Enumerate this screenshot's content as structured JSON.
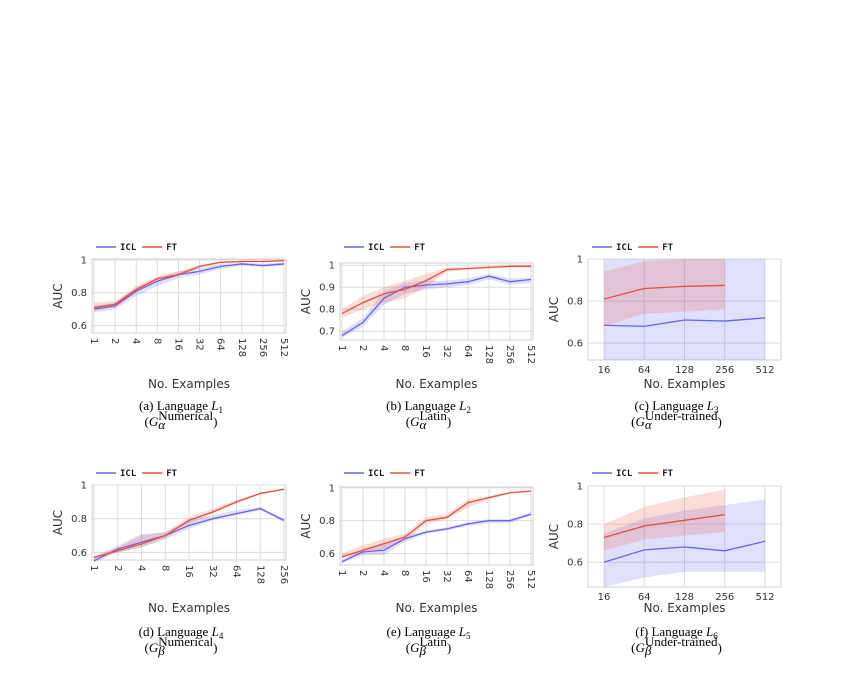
{
  "chart_data": [
    {
      "type": "line",
      "xlabel": "No. Examples",
      "ylabel": "AUC",
      "categories": [
        "1",
        "2",
        "4",
        "8",
        "16",
        "32",
        "64",
        "128",
        "256",
        "512"
      ],
      "ylim": [
        0.555,
        1.005
      ],
      "yticks": [
        0.6,
        0.8,
        1
      ],
      "grid": true,
      "series": [
        {
          "name": "ICL",
          "color": "#6464f0",
          "values": [
            0.7,
            0.72,
            0.81,
            0.87,
            0.91,
            0.93,
            0.96,
            0.975,
            0.965,
            0.975
          ],
          "lower": [
            0.68,
            0.7,
            0.78,
            0.84,
            0.89,
            0.91,
            0.945,
            0.965,
            0.955,
            0.965
          ],
          "upper": [
            0.72,
            0.74,
            0.83,
            0.89,
            0.93,
            0.95,
            0.975,
            0.985,
            0.975,
            0.985
          ]
        },
        {
          "name": "FT",
          "color": "#e6503c",
          "values": [
            0.71,
            0.73,
            0.82,
            0.885,
            0.91,
            0.96,
            0.985,
            0.99,
            0.99,
            0.995
          ],
          "lower": [
            0.69,
            0.71,
            0.8,
            0.87,
            0.9,
            0.95,
            0.98,
            0.985,
            0.985,
            0.99
          ],
          "upper": [
            0.74,
            0.75,
            0.84,
            0.9,
            0.93,
            0.97,
            0.99,
            0.995,
            0.995,
            1.0
          ]
        }
      ],
      "caption_prefix": "(a) Language ",
      "caption_var": "L",
      "caption_sub": "1",
      "group_open": "(",
      "group_var": "G",
      "group_sub": "α",
      "group_sup": "Numerical",
      "group_close": ")"
    },
    {
      "type": "line",
      "xlabel": "No. Examples",
      "ylabel": "AUC",
      "categories": [
        "1",
        "2",
        "4",
        "8",
        "16",
        "32",
        "64",
        "128",
        "256",
        "512"
      ],
      "ylim": [
        0.66,
        1.01
      ],
      "yticks": [
        0.7,
        0.8,
        0.9,
        1
      ],
      "grid": true,
      "series": [
        {
          "name": "ICL",
          "color": "#6464f0",
          "values": [
            0.68,
            0.74,
            0.85,
            0.9,
            0.91,
            0.915,
            0.925,
            0.95,
            0.925,
            0.935
          ],
          "lower": [
            0.67,
            0.72,
            0.82,
            0.87,
            0.89,
            0.9,
            0.91,
            0.935,
            0.91,
            0.92
          ],
          "upper": [
            0.7,
            0.76,
            0.88,
            0.92,
            0.93,
            0.93,
            0.94,
            0.96,
            0.94,
            0.945
          ]
        },
        {
          "name": "FT",
          "color": "#e6503c",
          "values": [
            0.78,
            0.83,
            0.87,
            0.89,
            0.93,
            0.98,
            0.985,
            0.99,
            0.995,
            0.995
          ],
          "lower": [
            0.76,
            0.8,
            0.83,
            0.85,
            0.9,
            0.97,
            0.98,
            0.985,
            0.99,
            0.99
          ],
          "upper": [
            0.8,
            0.86,
            0.9,
            0.93,
            0.96,
            0.99,
            0.99,
            0.995,
            1.0,
            1.0
          ]
        }
      ],
      "caption_prefix": "(b) Language ",
      "caption_var": "L",
      "caption_sub": "2",
      "group_open": "(",
      "group_var": "G",
      "group_sub": "α",
      "group_sup": "Latin",
      "group_close": ")"
    },
    {
      "type": "line",
      "xlabel": "No. Examples",
      "ylabel": "AUC",
      "categories": [
        "16",
        "64",
        "128",
        "256",
        "512"
      ],
      "ylim": [
        0.52,
        1.0
      ],
      "yticks": [
        0.6,
        0.8,
        1
      ],
      "grid": true,
      "series": [
        {
          "name": "ICL",
          "color": "#6464f0",
          "values": [
            0.685,
            0.68,
            0.71,
            0.705,
            0.72
          ],
          "lower": [
            0.52,
            0.52,
            0.52,
            0.52,
            0.52
          ],
          "upper": [
            1.0,
            1.0,
            1.0,
            1.0,
            1.0
          ]
        },
        {
          "name": "FT",
          "color": "#e6503c",
          "values": [
            0.81,
            0.86,
            0.87,
            0.875,
            null
          ],
          "lower": [
            0.68,
            0.74,
            0.75,
            0.76,
            null
          ],
          "upper": [
            0.94,
            0.99,
            1.0,
            1.0,
            null
          ]
        }
      ],
      "caption_prefix": "(c) Language ",
      "caption_var": "L",
      "caption_sub": "3",
      "group_open": "(",
      "group_var": "G",
      "group_sub": "α",
      "group_sup": "Under-trained",
      "group_close": ")"
    },
    {
      "type": "line",
      "xlabel": "No. Examples",
      "ylabel": "AUC",
      "categories": [
        "1",
        "2",
        "4",
        "8",
        "16",
        "32",
        "64",
        "128",
        "256"
      ],
      "ylim": [
        0.555,
        1.0
      ],
      "yticks": [
        0.6,
        0.8,
        1
      ],
      "grid": true,
      "series": [
        {
          "name": "ICL",
          "color": "#6464f0",
          "values": [
            0.55,
            0.62,
            0.66,
            0.7,
            0.76,
            0.8,
            0.83,
            0.86,
            0.79
          ],
          "lower": [
            0.54,
            0.6,
            0.63,
            0.68,
            0.74,
            0.79,
            0.82,
            0.85,
            0.78
          ],
          "upper": [
            0.57,
            0.64,
            0.71,
            0.72,
            0.79,
            0.82,
            0.85,
            0.87,
            0.8
          ]
        },
        {
          "name": "FT",
          "color": "#e6503c",
          "values": [
            0.57,
            0.61,
            0.65,
            0.7,
            0.79,
            0.84,
            0.9,
            0.95,
            0.975
          ],
          "lower": [
            0.56,
            0.6,
            0.63,
            0.68,
            0.77,
            0.83,
            0.89,
            0.945,
            0.97
          ],
          "upper": [
            0.58,
            0.63,
            0.7,
            0.72,
            0.81,
            0.86,
            0.91,
            0.955,
            0.98
          ]
        }
      ],
      "caption_prefix": "(d) Language ",
      "caption_var": "L",
      "caption_sub": "4",
      "group_open": "(",
      "group_var": "G",
      "group_sub": "β",
      "group_sup": "Numerical",
      "group_close": ")"
    },
    {
      "type": "line",
      "xlabel": "No. Examples",
      "ylabel": "AUC",
      "categories": [
        "1",
        "2",
        "4",
        "8",
        "16",
        "32",
        "64",
        "128",
        "256",
        "512"
      ],
      "ylim": [
        0.53,
        1.005
      ],
      "yticks": [
        0.6,
        0.8,
        1
      ],
      "grid": true,
      "series": [
        {
          "name": "ICL",
          "color": "#6464f0",
          "values": [
            0.55,
            0.61,
            0.62,
            0.69,
            0.73,
            0.75,
            0.78,
            0.8,
            0.8,
            0.84
          ],
          "lower": [
            0.54,
            0.59,
            0.59,
            0.67,
            0.72,
            0.74,
            0.77,
            0.785,
            0.785,
            0.83
          ],
          "upper": [
            0.56,
            0.63,
            0.66,
            0.71,
            0.74,
            0.76,
            0.79,
            0.81,
            0.81,
            0.85
          ]
        },
        {
          "name": "FT",
          "color": "#e6503c",
          "values": [
            0.58,
            0.62,
            0.66,
            0.7,
            0.8,
            0.82,
            0.91,
            0.94,
            0.97,
            0.98
          ],
          "lower": [
            0.57,
            0.6,
            0.63,
            0.68,
            0.78,
            0.81,
            0.88,
            0.93,
            0.965,
            0.975
          ],
          "upper": [
            0.6,
            0.65,
            0.69,
            0.72,
            0.82,
            0.84,
            0.93,
            0.95,
            0.975,
            0.985
          ]
        }
      ],
      "caption_prefix": "(e) Language ",
      "caption_var": "L",
      "caption_sub": "5",
      "group_open": "(",
      "group_var": "G",
      "group_sub": "β",
      "group_sup": "Latin",
      "group_close": ")"
    },
    {
      "type": "line",
      "xlabel": "No. Examples",
      "ylabel": "AUC",
      "categories": [
        "16",
        "64",
        "128",
        "256",
        "512"
      ],
      "ylim": [
        0.47,
        1.0
      ],
      "yticks": [
        0.6,
        0.8,
        1
      ],
      "grid": true,
      "series": [
        {
          "name": "ICL",
          "color": "#6464f0",
          "values": [
            0.6,
            0.665,
            0.68,
            0.66,
            0.71
          ],
          "lower": [
            0.47,
            0.52,
            0.55,
            0.55,
            0.55
          ],
          "upper": [
            0.75,
            0.83,
            0.87,
            0.9,
            0.93
          ]
        },
        {
          "name": "FT",
          "color": "#e6503c",
          "values": [
            0.73,
            0.79,
            0.82,
            0.85,
            null
          ],
          "lower": [
            0.66,
            0.72,
            0.74,
            0.76,
            null
          ],
          "upper": [
            0.8,
            0.89,
            0.94,
            0.98,
            null
          ]
        }
      ],
      "caption_prefix": "(f) Language ",
      "caption_var": "L",
      "caption_sub": "6",
      "group_open": "(",
      "group_var": "G",
      "group_sub": "β",
      "group_sup": "Under-trained",
      "group_close": ")"
    }
  ]
}
